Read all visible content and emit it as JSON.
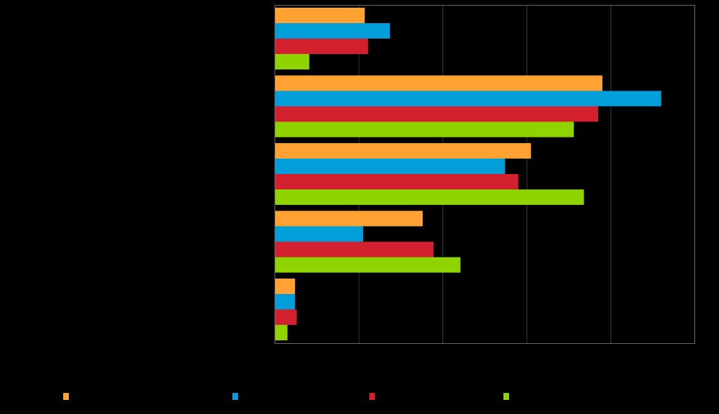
{
  "chart_data": {
    "type": "bar",
    "orientation": "horizontal",
    "title": "",
    "xlabel": "",
    "ylabel": "",
    "categories": [
      "",
      "",
      "",
      "",
      ""
    ],
    "xlim": [
      0,
      5
    ],
    "grid": true,
    "legend_placement": "bottom",
    "series": [
      {
        "color": "#FFA231",
        "values": [
          1.07,
          3.9,
          3.05,
          1.76,
          0.24
        ]
      },
      {
        "color": "#009FDA",
        "values": [
          1.37,
          4.6,
          2.74,
          1.05,
          0.24
        ]
      },
      {
        "color": "#D2202E",
        "values": [
          1.11,
          3.85,
          2.9,
          1.89,
          0.26
        ]
      },
      {
        "color": "#8FD400",
        "values": [
          0.41,
          3.56,
          3.68,
          2.21,
          0.15
        ]
      }
    ]
  }
}
